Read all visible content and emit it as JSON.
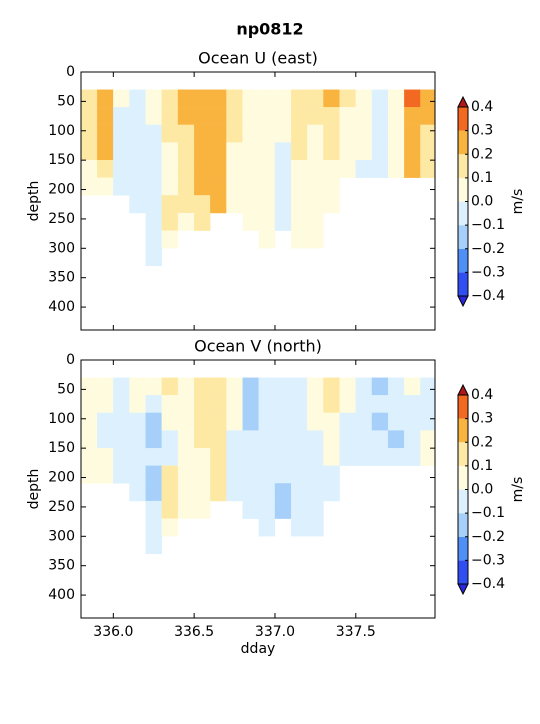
{
  "title": "np0812",
  "chart_data": [
    {
      "type": "contour",
      "title": "Ocean U (east)",
      "ylabel": "depth",
      "x": [
        335.85,
        335.95,
        336.05,
        336.15,
        336.25,
        336.35,
        336.45,
        336.55,
        336.65,
        336.75,
        336.85,
        336.95,
        337.05,
        337.15,
        337.25,
        337.35,
        337.45,
        337.55,
        337.65,
        337.75,
        337.85,
        337.95
      ],
      "depth": [
        45,
        75,
        105,
        135,
        165,
        195,
        225,
        255,
        285,
        315
      ],
      "values": [
        [
          0.15,
          0.25,
          0.05,
          -0.05,
          0.05,
          0.15,
          0.25,
          0.25,
          0.25,
          0.15,
          0.05,
          0.05,
          0.05,
          0.15,
          0.15,
          0.25,
          0.15,
          0.05,
          -0.05,
          0.05,
          0.35,
          0.25
        ],
        [
          0.15,
          0.25,
          -0.05,
          -0.05,
          0.05,
          0.15,
          0.25,
          0.25,
          0.25,
          0.15,
          0.05,
          0.05,
          0.05,
          0.15,
          0.15,
          0.15,
          0.05,
          0.05,
          -0.05,
          0.05,
          0.25,
          0.25
        ],
        [
          0.15,
          0.25,
          -0.05,
          -0.05,
          -0.05,
          0.15,
          0.15,
          0.25,
          0.25,
          0.15,
          0.05,
          0.05,
          0.05,
          0.15,
          0.05,
          0.15,
          0.05,
          0.05,
          -0.05,
          0.05,
          0.25,
          0.15
        ],
        [
          0.15,
          0.25,
          -0.05,
          -0.05,
          -0.05,
          0.05,
          0.15,
          0.25,
          0.25,
          0.05,
          0.05,
          0.05,
          -0.05,
          0.15,
          0.05,
          0.15,
          0.05,
          0.05,
          -0.05,
          0.05,
          0.25,
          0.15
        ],
        [
          0.05,
          0.15,
          -0.05,
          -0.05,
          -0.05,
          0.05,
          0.15,
          0.25,
          0.25,
          0.05,
          0.05,
          0.05,
          -0.05,
          0.05,
          0.05,
          0.05,
          0.05,
          -0.05,
          -0.05,
          0.05,
          0.25,
          0.15
        ],
        [
          0.05,
          0.05,
          -0.05,
          -0.05,
          -0.05,
          0.05,
          0.15,
          0.25,
          0.25,
          0.05,
          0.05,
          0.05,
          -0.05,
          0.05,
          0.05,
          0.05,
          null,
          null,
          null,
          null,
          null,
          null
        ],
        [
          null,
          null,
          null,
          -0.05,
          -0.05,
          0.15,
          0.15,
          0.15,
          0.25,
          0.05,
          0.05,
          0.05,
          -0.05,
          0.05,
          0.05,
          0.05,
          null,
          null,
          null,
          null,
          null,
          null
        ],
        [
          null,
          null,
          null,
          null,
          -0.05,
          0.15,
          0.05,
          0.15,
          null,
          null,
          0.05,
          0.05,
          -0.05,
          0.05,
          0.05,
          null,
          null,
          null,
          null,
          null,
          null,
          null
        ],
        [
          null,
          null,
          null,
          null,
          -0.05,
          0.05,
          null,
          null,
          null,
          null,
          null,
          0.05,
          null,
          0.05,
          0.05,
          null,
          null,
          null,
          null,
          null,
          null,
          null
        ],
        [
          null,
          null,
          null,
          null,
          -0.05,
          null,
          null,
          null,
          null,
          null,
          null,
          null,
          null,
          null,
          null,
          null,
          null,
          null,
          null,
          null,
          null,
          null
        ]
      ],
      "xlim": [
        335.8,
        337.99
      ],
      "ylim": [
        439,
        0
      ],
      "xticks": [
        336,
        336.5,
        337,
        337.5
      ],
      "yticks": [
        0,
        50,
        100,
        150,
        200,
        250,
        300,
        350,
        400
      ],
      "colorbar": {
        "label": "m/s",
        "ticks": [
          {
            "value": -0.4,
            "label": "−0.4"
          },
          {
            "value": -0.3,
            "label": "−0.3"
          },
          {
            "value": -0.2,
            "label": "−0.2"
          },
          {
            "value": -0.1,
            "label": "−0.1"
          },
          {
            "value": 0,
            "label": "0.0"
          },
          0.1,
          0.2,
          0.3,
          0.4
        ],
        "colors": [
          "#2f4ff2",
          "#4f90f6",
          "#a6d0fa",
          "#dcf0fd",
          "#fffbdf",
          "#fde9a4",
          "#f9b440",
          "#f26a22"
        ],
        "under_color": "#2a28d8",
        "over_color": "#b01818"
      }
    },
    {
      "type": "contour",
      "title": "Ocean V (north)",
      "ylabel": "depth",
      "xlabel": "dday",
      "x": [
        335.85,
        335.95,
        336.05,
        336.15,
        336.25,
        336.35,
        336.45,
        336.55,
        336.65,
        336.75,
        336.85,
        336.95,
        337.05,
        337.15,
        337.25,
        337.35,
        337.45,
        337.55,
        337.65,
        337.75,
        337.85,
        337.95
      ],
      "depth": [
        45,
        75,
        105,
        135,
        165,
        195,
        225,
        255,
        285,
        315
      ],
      "values": [
        [
          0.05,
          0.05,
          -0.05,
          0.05,
          0.05,
          0.15,
          0.05,
          0.15,
          0.15,
          0.05,
          -0.15,
          -0.05,
          -0.05,
          -0.05,
          0.05,
          0.15,
          0.05,
          -0.05,
          -0.15,
          -0.05,
          0.05,
          -0.05
        ],
        [
          0.05,
          0.05,
          -0.05,
          0.05,
          -0.05,
          0.05,
          0.05,
          0.15,
          0.15,
          0.05,
          -0.15,
          -0.05,
          -0.05,
          -0.05,
          0.05,
          0.15,
          0.05,
          -0.05,
          -0.05,
          -0.05,
          -0.05,
          -0.05
        ],
        [
          0.05,
          -0.05,
          -0.05,
          -0.05,
          -0.15,
          0.05,
          0.05,
          0.15,
          0.15,
          0.05,
          -0.15,
          -0.05,
          -0.05,
          -0.05,
          0.05,
          0.05,
          -0.05,
          -0.05,
          -0.15,
          -0.05,
          -0.05,
          -0.05
        ],
        [
          0.05,
          -0.05,
          -0.05,
          -0.05,
          -0.15,
          -0.05,
          0.05,
          0.15,
          0.15,
          -0.05,
          -0.05,
          -0.05,
          -0.05,
          -0.05,
          -0.05,
          0.05,
          -0.05,
          -0.05,
          -0.05,
          -0.15,
          -0.05,
          0.05
        ],
        [
          0.05,
          0.05,
          -0.05,
          -0.05,
          -0.05,
          -0.05,
          0.05,
          0.05,
          0.15,
          -0.05,
          -0.05,
          -0.05,
          -0.05,
          -0.05,
          -0.05,
          0.05,
          -0.05,
          -0.05,
          -0.05,
          -0.05,
          -0.05,
          0.05
        ],
        [
          0.05,
          0.05,
          -0.05,
          -0.05,
          -0.15,
          0.15,
          0.05,
          0.05,
          0.15,
          -0.05,
          -0.05,
          -0.05,
          -0.05,
          -0.05,
          -0.05,
          -0.05,
          null,
          null,
          null,
          null,
          null,
          null
        ],
        [
          null,
          null,
          null,
          -0.05,
          -0.15,
          0.15,
          0.05,
          0.05,
          0.15,
          -0.05,
          -0.05,
          -0.05,
          -0.15,
          -0.05,
          -0.05,
          -0.05,
          null,
          null,
          null,
          null,
          null,
          null
        ],
        [
          null,
          null,
          null,
          null,
          -0.05,
          0.15,
          0.05,
          0.05,
          null,
          null,
          -0.05,
          -0.05,
          -0.15,
          -0.05,
          -0.05,
          null,
          null,
          null,
          null,
          null,
          null,
          null
        ],
        [
          null,
          null,
          null,
          null,
          -0.05,
          0.05,
          null,
          null,
          null,
          null,
          null,
          -0.05,
          null,
          -0.05,
          -0.05,
          null,
          null,
          null,
          null,
          null,
          null,
          null
        ],
        [
          null,
          null,
          null,
          null,
          -0.05,
          null,
          null,
          null,
          null,
          null,
          null,
          null,
          null,
          null,
          null,
          null,
          null,
          null,
          null,
          null,
          null,
          null
        ]
      ],
      "xlim": [
        335.8,
        337.99
      ],
      "ylim": [
        439,
        0
      ],
      "xticks": [
        {
          "value": 336,
          "label": "336.0"
        },
        {
          "value": 336.5,
          "label": "336.5"
        },
        {
          "value": 337,
          "label": "337.0"
        },
        {
          "value": 337.5,
          "label": "337.5"
        }
      ],
      "yticks": [
        0,
        50,
        100,
        150,
        200,
        250,
        300,
        350,
        400
      ],
      "colorbar": {
        "label": "m/s",
        "ticks": [
          {
            "value": -0.4,
            "label": "−0.4"
          },
          {
            "value": -0.3,
            "label": "−0.3"
          },
          {
            "value": -0.2,
            "label": "−0.2"
          },
          {
            "value": -0.1,
            "label": "−0.1"
          },
          {
            "value": 0,
            "label": "0.0"
          },
          0.1,
          0.2,
          0.3,
          0.4
        ],
        "colors": [
          "#2f4ff2",
          "#4f90f6",
          "#a6d0fa",
          "#dcf0fd",
          "#fffbdf",
          "#fde9a4",
          "#f9b440",
          "#f26a22"
        ],
        "under_color": "#2a28d8",
        "over_color": "#b01818"
      }
    }
  ]
}
